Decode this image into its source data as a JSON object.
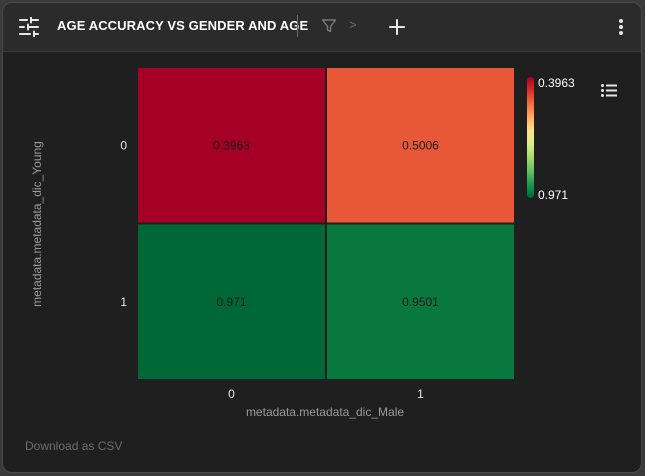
{
  "header": {
    "title": "AGE ACCURACY VS GENDER AND AGE",
    "breadcrumb_sep": ">",
    "icons": [
      "sliders-icon",
      "filter-icon",
      "plus-icon",
      "more-vertical-icon"
    ]
  },
  "footer": {
    "download_label": "Download as CSV"
  },
  "legend_toggle_icon": "list-icon",
  "chart_data": {
    "type": "heatmap",
    "title": "AGE ACCURACY VS GENDER AND AGE",
    "xlabel": "metadata.metadata_dic_Male",
    "ylabel": "metadata.metadata_dic_Young",
    "x_categories": [
      "0",
      "1"
    ],
    "y_categories": [
      "0",
      "1"
    ],
    "values": [
      [
        0.3963,
        0.5006
      ],
      [
        0.971,
        0.9501
      ]
    ],
    "value_labels": [
      [
        "0.3963",
        "0.5006"
      ],
      [
        "0.971",
        "0.9501"
      ]
    ],
    "colorscale": {
      "min": 0.3963,
      "max": 0.971,
      "min_label": "0.3963",
      "max_label": "0.971",
      "colors": [
        "#a50026",
        "#d73027",
        "#f46d43",
        "#fdae61",
        "#fee08b",
        "#d9ef8b",
        "#a6d96a",
        "#66bd63",
        "#1a9850",
        "#006837"
      ]
    },
    "colorbar_position": "right"
  }
}
